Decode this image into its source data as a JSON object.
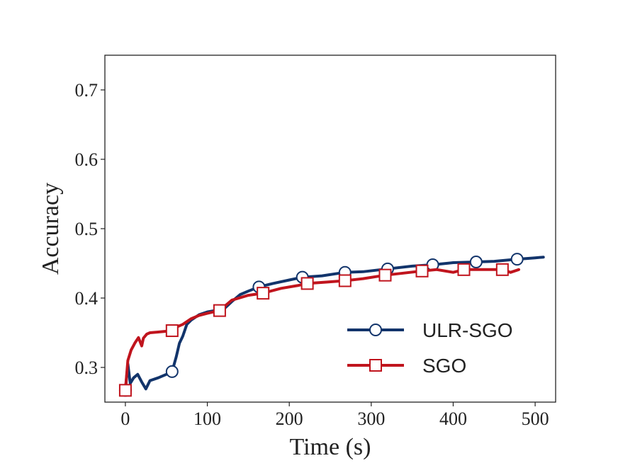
{
  "chart_data": {
    "type": "line",
    "title": "",
    "xlabel": "Time (s)",
    "ylabel": "Accuracy",
    "xlim": [
      -25,
      525
    ],
    "ylim": [
      0.25,
      0.75
    ],
    "xticks": [
      0,
      100,
      200,
      300,
      400,
      500
    ],
    "yticks": [
      0.3,
      0.4,
      0.5,
      0.6,
      0.7
    ],
    "xtick_labels": [
      "0",
      "100",
      "200",
      "300",
      "400",
      "500"
    ],
    "ytick_labels": [
      "0.3",
      "0.4",
      "0.5",
      "0.6",
      "0.7"
    ],
    "grid": false,
    "legend_position": "lower-right",
    "series": [
      {
        "name": "ULR-SGO",
        "color": "#12346b",
        "marker": "circle",
        "x": [
          0,
          3,
          6,
          10,
          15,
          20,
          25,
          30,
          40,
          50,
          57,
          62,
          66,
          70,
          75,
          80,
          90,
          100,
          110,
          120,
          130,
          140,
          150,
          163,
          180,
          200,
          216,
          240,
          268,
          290,
          320,
          350,
          375,
          400,
          428,
          450,
          478,
          490,
          500,
          510
        ],
        "y": [
          0.267,
          0.305,
          0.277,
          0.285,
          0.29,
          0.279,
          0.269,
          0.281,
          0.285,
          0.29,
          0.294,
          0.315,
          0.335,
          0.345,
          0.362,
          0.368,
          0.376,
          0.38,
          0.382,
          0.384,
          0.395,
          0.405,
          0.41,
          0.416,
          0.421,
          0.426,
          0.43,
          0.432,
          0.437,
          0.438,
          0.442,
          0.446,
          0.448,
          0.451,
          0.452,
          0.453,
          0.456,
          0.457,
          0.458,
          0.459
        ],
        "marker_x": [
          0,
          57,
          163,
          216,
          268,
          320,
          375,
          428,
          478
        ]
      },
      {
        "name": "SGO",
        "color": "#c0141d",
        "marker": "square",
        "x": [
          0,
          3,
          7,
          12,
          16,
          20,
          22,
          26,
          30,
          40,
          57,
          62,
          70,
          80,
          90,
          100,
          115,
          130,
          150,
          168,
          190,
          210,
          222,
          245,
          268,
          290,
          317,
          340,
          362,
          380,
          400,
          413,
          440,
          460,
          470,
          480
        ],
        "y": [
          0.267,
          0.31,
          0.325,
          0.336,
          0.343,
          0.331,
          0.342,
          0.348,
          0.35,
          0.351,
          0.353,
          0.358,
          0.362,
          0.37,
          0.375,
          0.378,
          0.382,
          0.397,
          0.404,
          0.407,
          0.414,
          0.418,
          0.421,
          0.423,
          0.425,
          0.428,
          0.433,
          0.436,
          0.439,
          0.441,
          0.437,
          0.441,
          0.441,
          0.441,
          0.437,
          0.441
        ],
        "marker_x": [
          0,
          57,
          115,
          168,
          222,
          268,
          317,
          362,
          413,
          460
        ]
      }
    ]
  }
}
